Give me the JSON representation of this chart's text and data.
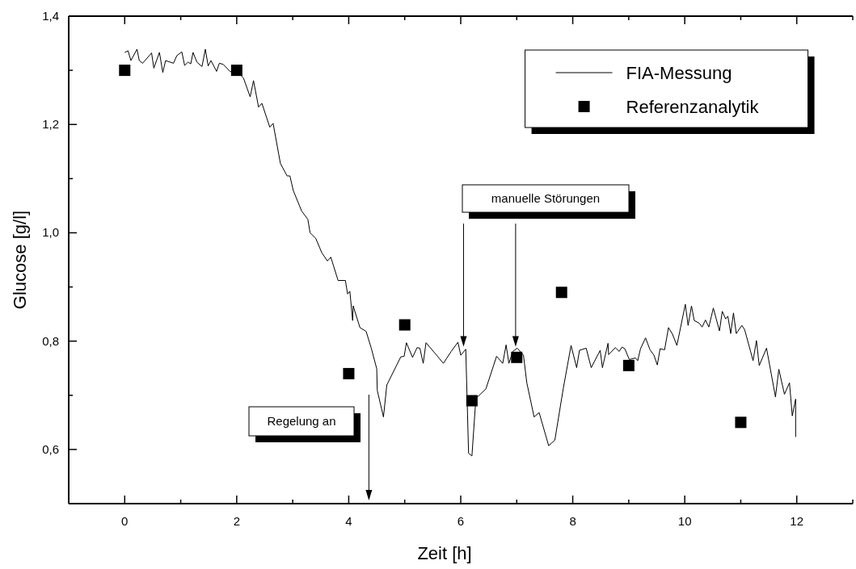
{
  "chart_data": {
    "type": "line",
    "xlabel": "Zeit [h]",
    "ylabel": "Glucose [g/l]",
    "xlim": [
      -1,
      13
    ],
    "xticks": [
      {
        "value": -1,
        "label": null
      },
      0,
      {
        "value": 1,
        "label": null
      },
      2,
      {
        "value": 3,
        "label": null
      },
      4,
      {
        "value": 5,
        "label": null
      },
      6,
      {
        "value": 7,
        "label": null
      },
      8,
      {
        "value": 9,
        "label": null
      },
      10,
      {
        "value": 11,
        "label": null
      },
      12,
      {
        "value": 13,
        "label": null
      }
    ],
    "ylim": [
      0.5,
      1.4
    ],
    "yticks": [
      {
        "value": 0.5,
        "label": null
      },
      {
        "value": 0.6,
        "label": "0,6"
      },
      {
        "value": 0.7,
        "label": null
      },
      {
        "value": 0.8,
        "label": "0,8"
      },
      {
        "value": 0.9,
        "label": null
      },
      {
        "value": 1.0,
        "label": "1,0"
      },
      {
        "value": 1.1,
        "label": null
      },
      {
        "value": 1.2,
        "label": "1,2"
      },
      {
        "value": 1.3,
        "label": null
      },
      {
        "value": 1.4,
        "label": "1,4"
      }
    ],
    "grid": false,
    "legend": "top right",
    "annotations": [
      "Regelung an",
      "manuelle Störungen"
    ],
    "series": [
      {
        "name": "FIA-Messung",
        "color": "#000000",
        "marker": "none",
        "line_style": "solid",
        "x": [
          0,
          0.06,
          0.11,
          0.22,
          0.26,
          0.32,
          0.48,
          0.52,
          0.62,
          0.68,
          0.73,
          0.87,
          0.93,
          1.02,
          1.07,
          1.13,
          1.18,
          1.22,
          1.29,
          1.38,
          1.44,
          1.49,
          1.54,
          1.64,
          1.69,
          1.76,
          1.88,
          2.07,
          2.12,
          2.24,
          2.3,
          2.39,
          2.45,
          2.59,
          2.65,
          2.78,
          2.9,
          2.95,
          3.01,
          3.16,
          3.27,
          3.31,
          3.41,
          3.52,
          3.62,
          3.68,
          3.81,
          3.94,
          3.98,
          4.02,
          4.07,
          4.08,
          4.2,
          4.31,
          4.4,
          4.5,
          4.51,
          4.62,
          4.68,
          4.93,
          4.99,
          5.03,
          5.14,
          5.22,
          5.27,
          5.33,
          5.38,
          5.57,
          5.69,
          5.83,
          5.95,
          6.0,
          6.09,
          6.14,
          6.2,
          6.27,
          6.36,
          6.45,
          6.64,
          6.75,
          6.81,
          6.86,
          6.93,
          7.01,
          7.12,
          7.18,
          7.31,
          7.4,
          7.57,
          7.68,
          7.83,
          7.97,
          8.07,
          8.12,
          8.24,
          8.33,
          8.49,
          8.53,
          8.63,
          8.64,
          8.76,
          8.83,
          8.88,
          8.93,
          9.01,
          9.12,
          9.16,
          9.21,
          9.3,
          9.38,
          9.45,
          9.51,
          9.56,
          9.64,
          9.71,
          9.78,
          9.86,
          10.01,
          10.06,
          10.12,
          10.17,
          10.26,
          10.31,
          10.37,
          10.43,
          10.51,
          10.62,
          10.67,
          10.73,
          10.77,
          10.82,
          10.87,
          10.92,
          11.02,
          11.07,
          11.22,
          11.28,
          11.33,
          11.46,
          11.62,
          11.68,
          11.78,
          11.87,
          11.92,
          11.98,
          11.98
        ],
        "values": [
          1.333,
          1.336,
          1.318,
          1.339,
          1.318,
          1.313,
          1.332,
          1.304,
          1.333,
          1.296,
          1.318,
          1.313,
          1.327,
          1.334,
          1.309,
          1.315,
          1.312,
          1.333,
          1.315,
          1.307,
          1.339,
          1.308,
          1.318,
          1.298,
          1.313,
          1.311,
          1.298,
          1.291,
          1.286,
          1.251,
          1.281,
          1.232,
          1.239,
          1.195,
          1.202,
          1.128,
          1.105,
          1.105,
          1.078,
          1.04,
          1.025,
          1.0,
          0.99,
          0.963,
          0.948,
          0.955,
          0.912,
          0.912,
          0.887,
          0.892,
          0.838,
          0.865,
          0.825,
          0.818,
          0.788,
          0.749,
          0.709,
          0.66,
          0.719,
          0.771,
          0.772,
          0.797,
          0.77,
          0.788,
          0.787,
          0.759,
          0.797,
          0.774,
          0.759,
          0.781,
          0.798,
          0.774,
          0.785,
          0.593,
          0.588,
          0.694,
          0.703,
          0.712,
          0.772,
          0.759,
          0.793,
          0.759,
          0.781,
          0.787,
          0.774,
          0.723,
          0.66,
          0.668,
          0.607,
          0.617,
          0.712,
          0.792,
          0.751,
          0.783,
          0.787,
          0.751,
          0.783,
          0.751,
          0.796,
          0.775,
          0.788,
          0.781,
          0.789,
          0.786,
          0.766,
          0.769,
          0.764,
          0.786,
          0.806,
          0.784,
          0.774,
          0.756,
          0.786,
          0.784,
          0.825,
          0.813,
          0.792,
          0.868,
          0.829,
          0.865,
          0.838,
          0.833,
          0.826,
          0.839,
          0.826,
          0.861,
          0.819,
          0.855,
          0.841,
          0.846,
          0.814,
          0.852,
          0.814,
          0.829,
          0.821,
          0.764,
          0.801,
          0.755,
          0.787,
          0.697,
          0.748,
          0.702,
          0.723,
          0.662,
          0.693,
          0.623
        ]
      },
      {
        "name": "Referenzanalytik",
        "type": "scatter",
        "color": "#000000",
        "marker": "square",
        "x": [
          0,
          2,
          4,
          5,
          6.2,
          7,
          7.8,
          9,
          11
        ],
        "values": [
          1.3,
          1.3,
          0.74,
          0.83,
          0.69,
          0.77,
          0.89,
          0.755,
          0.65
        ]
      }
    ]
  }
}
